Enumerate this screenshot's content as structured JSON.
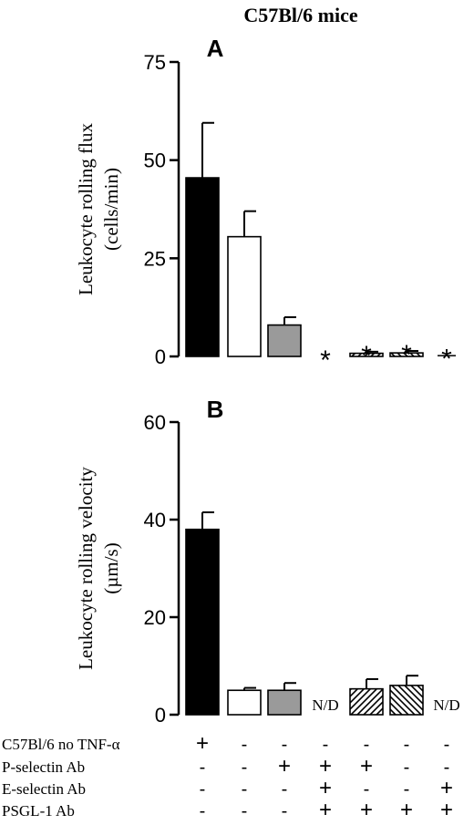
{
  "figure_title": "C57Bl/6 mice",
  "chart_data": [
    {
      "type": "bar",
      "panel_label": "A",
      "ylabel_line1": "Leukocyte rolling flux",
      "ylabel_line2": "(cells/min)",
      "ylim": [
        0,
        75
      ],
      "yticks": [
        "0",
        "25",
        "50",
        "75"
      ],
      "bars": [
        {
          "value": 45.5,
          "error": 14,
          "pattern": "black",
          "annotation": ""
        },
        {
          "value": 30.5,
          "error": 6.5,
          "pattern": "white",
          "annotation": ""
        },
        {
          "value": 8,
          "error": 2,
          "pattern": "gray",
          "annotation": ""
        },
        {
          "value": 0,
          "error": 0,
          "pattern": "none",
          "annotation": "*"
        },
        {
          "value": 0.8,
          "error": 0.4,
          "pattern": "hatch-forward",
          "annotation": "*"
        },
        {
          "value": 0.9,
          "error": 0.5,
          "pattern": "hatch-back",
          "annotation": "*"
        },
        {
          "value": 0.2,
          "error": 0.1,
          "pattern": "none",
          "annotation": "*"
        }
      ]
    },
    {
      "type": "bar",
      "panel_label": "B",
      "ylabel_line1": "Leukocyte rolling velocity",
      "ylabel_line2": "(µm/s)",
      "ylim": [
        0,
        60
      ],
      "yticks": [
        "0",
        "20",
        "40",
        "60"
      ],
      "bars": [
        {
          "value": 38,
          "error": 3.5,
          "pattern": "black",
          "annotation": ""
        },
        {
          "value": 5,
          "error": 0.5,
          "pattern": "white",
          "annotation": ""
        },
        {
          "value": 5,
          "error": 1.5,
          "pattern": "gray",
          "annotation": ""
        },
        {
          "value": 0,
          "error": 0,
          "pattern": "none",
          "annotation": "N/D"
        },
        {
          "value": 5.3,
          "error": 2,
          "pattern": "hatch-forward",
          "annotation": ""
        },
        {
          "value": 6,
          "error": 2,
          "pattern": "hatch-back",
          "annotation": ""
        },
        {
          "value": 0,
          "error": 0,
          "pattern": "none",
          "annotation": "N/D"
        }
      ]
    }
  ],
  "conditions": [
    {
      "label": "C57Bl/6 no TNF-α",
      "marks": [
        "+",
        "-",
        "-",
        "-",
        "-",
        "-",
        "-"
      ]
    },
    {
      "label": "P-selectin Ab",
      "marks": [
        "-",
        "-",
        "+",
        "+",
        "+",
        "-",
        "-"
      ]
    },
    {
      "label": "E-selectin Ab",
      "marks": [
        "-",
        "-",
        "-",
        "+",
        "-",
        "-",
        "+"
      ]
    },
    {
      "label": "PSGL-1 Ab",
      "marks": [
        "-",
        "-",
        "-",
        "+",
        "+",
        "+",
        "+"
      ]
    }
  ]
}
